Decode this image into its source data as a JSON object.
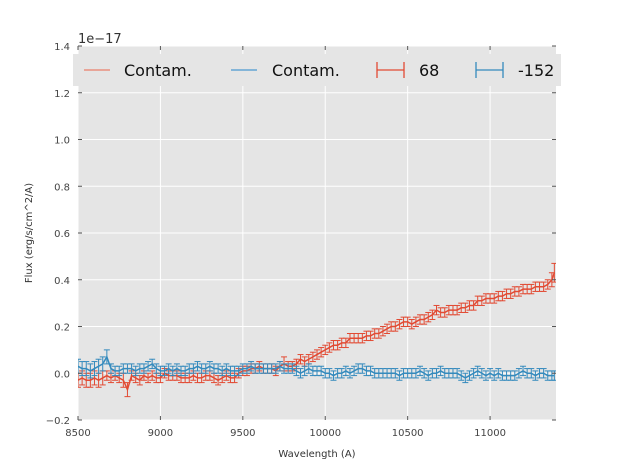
{
  "chart_data": {
    "type": "line",
    "title": "",
    "xlabel": "Wavelength (A)",
    "ylabel": "Flux (erg/s/cm^2/A)",
    "xlim": [
      8500,
      11400
    ],
    "ylim": [
      -0.2,
      1.4
    ],
    "y_scale_label": "1e−17",
    "xticks": [
      8500,
      9000,
      9500,
      10000,
      10500,
      11000
    ],
    "xtick_labels": [
      "8500",
      "9000",
      "9500",
      "10000",
      "10500",
      "11000"
    ],
    "yticks": [
      -0.2,
      0.0,
      0.2,
      0.4,
      0.6,
      0.8,
      1.0,
      1.2,
      1.4
    ],
    "ytick_labels": [
      "−0.2",
      "0.0",
      "0.2",
      "0.4",
      "0.6",
      "0.8",
      "1.0",
      "1.2",
      "1.4"
    ],
    "grid": true,
    "legend_position": "top",
    "legend": [
      {
        "label": "Contam.",
        "kind": "line",
        "color": "#E8A598"
      },
      {
        "label": "Contam.",
        "kind": "line",
        "color": "#84B5D8"
      },
      {
        "label": "68",
        "kind": "errorbar",
        "color": "#E24A33"
      },
      {
        "label": "-152",
        "kind": "errorbar",
        "color": "#348ABD"
      }
    ],
    "series": [
      {
        "name": "68",
        "color": "#E24A33",
        "x": [
          8500,
          8525,
          8550,
          8575,
          8600,
          8625,
          8650,
          8675,
          8700,
          8725,
          8750,
          8775,
          8800,
          8825,
          8850,
          8875,
          8900,
          8925,
          8950,
          8975,
          9000,
          9025,
          9050,
          9075,
          9100,
          9125,
          9150,
          9175,
          9200,
          9225,
          9250,
          9275,
          9300,
          9325,
          9350,
          9375,
          9400,
          9425,
          9450,
          9475,
          9500,
          9525,
          9550,
          9575,
          9600,
          9625,
          9650,
          9675,
          9700,
          9725,
          9750,
          9775,
          9800,
          9825,
          9850,
          9875,
          9900,
          9925,
          9950,
          9975,
          10000,
          10025,
          10050,
          10075,
          10100,
          10125,
          10150,
          10175,
          10200,
          10225,
          10250,
          10275,
          10300,
          10325,
          10350,
          10375,
          10400,
          10425,
          10450,
          10475,
          10500,
          10525,
          10550,
          10575,
          10600,
          10625,
          10650,
          10675,
          10700,
          10725,
          10750,
          10775,
          10800,
          10825,
          10850,
          10875,
          10900,
          10925,
          10950,
          10975,
          11000,
          11025,
          11050,
          11075,
          11100,
          11125,
          11150,
          11175,
          11200,
          11225,
          11250,
          11275,
          11300,
          11325,
          11350,
          11375,
          11390
        ],
        "values": [
          -0.03,
          -0.02,
          -0.03,
          -0.03,
          -0.02,
          -0.03,
          -0.02,
          -0.01,
          -0.02,
          -0.01,
          -0.02,
          -0.03,
          -0.07,
          -0.01,
          -0.02,
          -0.03,
          -0.01,
          -0.02,
          -0.01,
          -0.02,
          -0.02,
          0.0,
          -0.01,
          -0.01,
          -0.01,
          -0.02,
          -0.02,
          -0.02,
          -0.01,
          -0.02,
          -0.02,
          -0.01,
          -0.01,
          -0.02,
          -0.03,
          -0.02,
          -0.01,
          -0.02,
          -0.02,
          0.0,
          0.01,
          0.01,
          0.02,
          0.02,
          0.03,
          0.02,
          0.02,
          0.02,
          0.01,
          0.03,
          0.04,
          0.03,
          0.03,
          0.04,
          0.06,
          0.05,
          0.06,
          0.07,
          0.08,
          0.09,
          0.1,
          0.11,
          0.12,
          0.12,
          0.13,
          0.13,
          0.15,
          0.15,
          0.15,
          0.15,
          0.16,
          0.16,
          0.17,
          0.17,
          0.18,
          0.19,
          0.2,
          0.2,
          0.21,
          0.22,
          0.22,
          0.21,
          0.22,
          0.23,
          0.23,
          0.24,
          0.25,
          0.27,
          0.26,
          0.26,
          0.27,
          0.27,
          0.27,
          0.28,
          0.28,
          0.29,
          0.29,
          0.31,
          0.31,
          0.32,
          0.32,
          0.32,
          0.33,
          0.33,
          0.34,
          0.34,
          0.35,
          0.35,
          0.36,
          0.36,
          0.36,
          0.37,
          0.37,
          0.37,
          0.38,
          0.4,
          0.43
        ],
        "errors": [
          0.03,
          0.03,
          0.03,
          0.03,
          0.03,
          0.03,
          0.03,
          0.02,
          0.02,
          0.02,
          0.02,
          0.03,
          0.03,
          0.02,
          0.02,
          0.02,
          0.02,
          0.02,
          0.02,
          0.02,
          0.02,
          0.02,
          0.02,
          0.02,
          0.02,
          0.02,
          0.02,
          0.02,
          0.02,
          0.02,
          0.02,
          0.02,
          0.02,
          0.02,
          0.02,
          0.02,
          0.02,
          0.02,
          0.02,
          0.02,
          0.02,
          0.02,
          0.02,
          0.02,
          0.02,
          0.02,
          0.02,
          0.02,
          0.02,
          0.02,
          0.03,
          0.02,
          0.02,
          0.02,
          0.02,
          0.02,
          0.02,
          0.02,
          0.02,
          0.02,
          0.02,
          0.02,
          0.02,
          0.02,
          0.02,
          0.02,
          0.02,
          0.02,
          0.02,
          0.02,
          0.02,
          0.02,
          0.02,
          0.02,
          0.02,
          0.02,
          0.02,
          0.02,
          0.02,
          0.02,
          0.02,
          0.02,
          0.02,
          0.02,
          0.02,
          0.02,
          0.02,
          0.02,
          0.02,
          0.02,
          0.02,
          0.02,
          0.02,
          0.02,
          0.02,
          0.02,
          0.02,
          0.02,
          0.02,
          0.02,
          0.02,
          0.02,
          0.02,
          0.02,
          0.02,
          0.02,
          0.02,
          0.02,
          0.02,
          0.02,
          0.02,
          0.02,
          0.02,
          0.02,
          0.02,
          0.03,
          0.04
        ]
      },
      {
        "name": "-152",
        "color": "#348ABD",
        "x": [
          8500,
          8525,
          8550,
          8575,
          8600,
          8625,
          8650,
          8675,
          8700,
          8725,
          8750,
          8775,
          8800,
          8825,
          8850,
          8875,
          8900,
          8925,
          8950,
          8975,
          9000,
          9025,
          9050,
          9075,
          9100,
          9125,
          9150,
          9175,
          9200,
          9225,
          9250,
          9275,
          9300,
          9325,
          9350,
          9375,
          9400,
          9425,
          9450,
          9475,
          9500,
          9525,
          9550,
          9575,
          9600,
          9625,
          9650,
          9675,
          9700,
          9725,
          9750,
          9775,
          9800,
          9825,
          9850,
          9875,
          9900,
          9925,
          9950,
          9975,
          10000,
          10025,
          10050,
          10075,
          10100,
          10125,
          10150,
          10175,
          10200,
          10225,
          10250,
          10275,
          10300,
          10325,
          10350,
          10375,
          10400,
          10425,
          10450,
          10475,
          10500,
          10525,
          10550,
          10575,
          10600,
          10625,
          10650,
          10675,
          10700,
          10725,
          10750,
          10775,
          10800,
          10825,
          10850,
          10875,
          10900,
          10925,
          10950,
          10975,
          11000,
          11025,
          11050,
          11075,
          11100,
          11125,
          11150,
          11175,
          11200,
          11225,
          11250,
          11275,
          11300,
          11325,
          11350,
          11375,
          11390
        ],
        "values": [
          0.03,
          0.02,
          0.02,
          0.01,
          0.02,
          0.03,
          0.04,
          0.07,
          0.02,
          0.01,
          0.01,
          0.02,
          0.02,
          0.02,
          0.01,
          0.02,
          0.02,
          0.03,
          0.04,
          0.02,
          0.01,
          0.01,
          0.02,
          0.01,
          0.02,
          0.01,
          0.01,
          0.02,
          0.02,
          0.03,
          0.02,
          0.02,
          0.03,
          0.02,
          0.02,
          0.01,
          0.02,
          0.01,
          0.01,
          0.01,
          0.02,
          0.02,
          0.03,
          0.02,
          0.02,
          0.02,
          0.02,
          0.02,
          0.02,
          0.03,
          0.02,
          0.02,
          0.02,
          0.01,
          0.0,
          0.01,
          0.02,
          0.01,
          0.01,
          0.01,
          0.0,
          0.0,
          -0.01,
          0.0,
          0.0,
          0.01,
          0.0,
          0.01,
          0.02,
          0.02,
          0.01,
          0.01,
          0.0,
          0.0,
          0.0,
          0.0,
          0.0,
          0.0,
          -0.01,
          0.0,
          0.0,
          0.0,
          0.0,
          0.01,
          0.0,
          -0.01,
          0.0,
          0.0,
          0.01,
          0.0,
          0.0,
          0.0,
          0.0,
          -0.01,
          -0.02,
          -0.01,
          0.0,
          0.01,
          0.0,
          -0.01,
          0.0,
          -0.01,
          0.0,
          -0.01,
          -0.01,
          -0.01,
          -0.01,
          0.0,
          0.01,
          0.0,
          0.0,
          -0.01,
          0.0,
          0.0,
          -0.01,
          -0.01,
          -0.01
        ],
        "errors": [
          0.03,
          0.03,
          0.03,
          0.03,
          0.03,
          0.03,
          0.03,
          0.03,
          0.02,
          0.02,
          0.02,
          0.02,
          0.02,
          0.02,
          0.02,
          0.02,
          0.02,
          0.02,
          0.02,
          0.02,
          0.02,
          0.02,
          0.02,
          0.02,
          0.02,
          0.02,
          0.02,
          0.02,
          0.02,
          0.02,
          0.02,
          0.02,
          0.02,
          0.02,
          0.02,
          0.02,
          0.02,
          0.02,
          0.02,
          0.02,
          0.02,
          0.02,
          0.02,
          0.02,
          0.02,
          0.02,
          0.02,
          0.02,
          0.02,
          0.02,
          0.02,
          0.02,
          0.02,
          0.02,
          0.02,
          0.02,
          0.02,
          0.02,
          0.02,
          0.02,
          0.02,
          0.02,
          0.02,
          0.02,
          0.02,
          0.02,
          0.02,
          0.02,
          0.02,
          0.02,
          0.02,
          0.02,
          0.02,
          0.02,
          0.02,
          0.02,
          0.02,
          0.02,
          0.02,
          0.02,
          0.02,
          0.02,
          0.02,
          0.02,
          0.02,
          0.02,
          0.02,
          0.02,
          0.02,
          0.02,
          0.02,
          0.02,
          0.02,
          0.02,
          0.02,
          0.02,
          0.02,
          0.02,
          0.02,
          0.02,
          0.02,
          0.02,
          0.02,
          0.02,
          0.02,
          0.02,
          0.02,
          0.02,
          0.02,
          0.02,
          0.02,
          0.02,
          0.02,
          0.02,
          0.02,
          0.02,
          0.02
        ]
      }
    ]
  }
}
